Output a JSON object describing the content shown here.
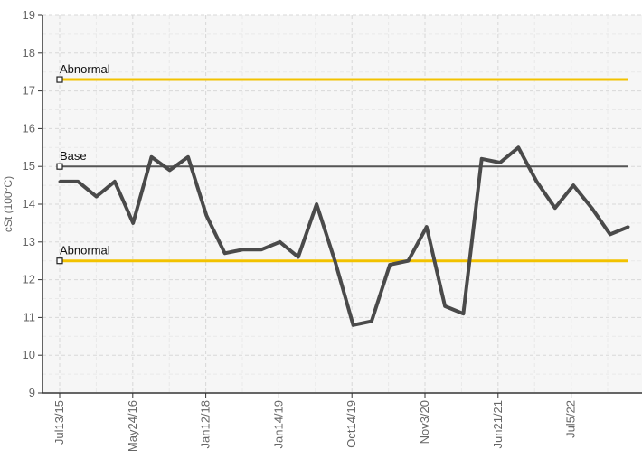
{
  "chart_data": {
    "type": "line",
    "ylabel": "cSt (100°C)",
    "ylim": [
      9,
      19
    ],
    "yticks": [
      9,
      10,
      11,
      12,
      13,
      14,
      15,
      16,
      17,
      18,
      19
    ],
    "xtick_labels": [
      "Jul13/15",
      "May24/16",
      "Jan12/18",
      "Jan14/19",
      "Oct14/19",
      "Nov3/20",
      "Jun21/21",
      "Jul5/22"
    ],
    "reference_lines": [
      {
        "label": "Abnormal",
        "value": 17.3,
        "color": "#f2c200"
      },
      {
        "label": "Base",
        "value": 15.0,
        "color": "#555555"
      },
      {
        "label": "Abnormal",
        "value": 12.5,
        "color": "#f2c200"
      }
    ],
    "series": [
      {
        "color": "#4a4a4a",
        "values": [
          14.6,
          14.6,
          14.2,
          14.6,
          13.5,
          15.25,
          14.9,
          15.25,
          13.7,
          12.7,
          12.8,
          12.8,
          13.0,
          12.6,
          14.0,
          12.5,
          10.8,
          10.9,
          12.4,
          12.5,
          13.4,
          11.3,
          11.1,
          15.2,
          15.1,
          15.5,
          14.6,
          13.9,
          14.5,
          13.9,
          13.2,
          13.4
        ]
      }
    ]
  }
}
